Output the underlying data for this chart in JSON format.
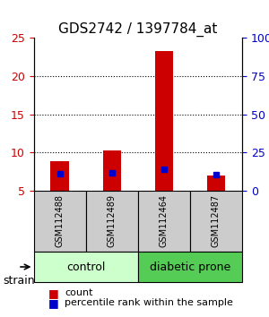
{
  "title": "GDS2742 / 1397784_at",
  "samples": [
    "GSM112488",
    "GSM112489",
    "GSM112464",
    "GSM112487"
  ],
  "groups": [
    "control",
    "control",
    "diabetic prone",
    "diabetic prone"
  ],
  "counts": [
    8.8,
    10.3,
    23.3,
    7.0
  ],
  "percentiles": [
    10.8,
    11.7,
    13.9,
    10.2
  ],
  "ylim_left": [
    5,
    25
  ],
  "ylim_right": [
    0,
    100
  ],
  "yticks_left": [
    5,
    10,
    15,
    20,
    25
  ],
  "yticks_right": [
    0,
    25,
    50,
    75,
    100
  ],
  "ytick_labels_right": [
    "0",
    "25",
    "50",
    "75",
    "100%"
  ],
  "bar_color": "#cc0000",
  "dot_color": "#0000cc",
  "group_colors": {
    "control": "#aaffaa",
    "diabetic prone": "#44cc44"
  },
  "control_light": "#ccffcc",
  "diabetic_light": "#55cc55",
  "grid_color": "#000000",
  "bg_color": "#ffffff",
  "sample_bg": "#cccccc"
}
